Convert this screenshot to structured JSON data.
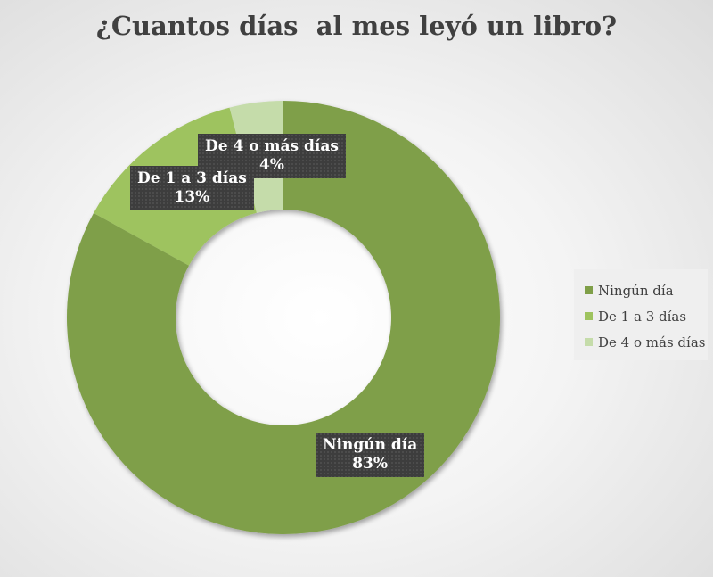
{
  "chart_data": {
    "type": "pie",
    "donut": true,
    "title": "¿Cuantos días  al mes leyó un libro?",
    "categories": [
      "Ningún día",
      "De 1 a 3 días",
      "De 4 o más días"
    ],
    "values": [
      83,
      13,
      4
    ],
    "value_labels": [
      "83%",
      "13%",
      "4%"
    ],
    "colors": [
      "#7f9f48",
      "#9ec35e",
      "#c5dcaa"
    ],
    "legend": "right"
  }
}
